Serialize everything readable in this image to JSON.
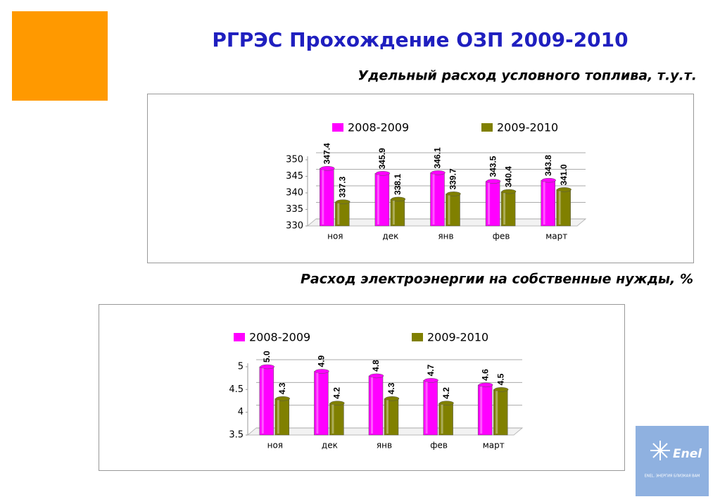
{
  "title": "РГРЭС  Прохождение ОЗП 2009-2010",
  "logo": {
    "name": "Enel",
    "tagline": "ENEL. ЭНЕРГИЯ БЛИЗКАЯ ВАМ"
  },
  "chart_data": [
    {
      "type": "bar",
      "title": "Удельный расход условного топлива, т.у.т.",
      "categories": [
        "ноя",
        "дек",
        "янв",
        "фев",
        "март"
      ],
      "series": [
        {
          "name": "2008-2009",
          "color": "#ff00ff",
          "values": [
            347.4,
            345.9,
            346.1,
            343.5,
            343.8
          ],
          "value_labels": [
            "347.4",
            "345.9",
            "346.1",
            "343.5",
            "343.8"
          ]
        },
        {
          "name": "2009-2010",
          "color": "#808000",
          "values": [
            337.3,
            338.1,
            339.7,
            340.4,
            341.0
          ],
          "value_labels": [
            "337.3",
            "338.1",
            "339.7",
            "340.4",
            "341.0"
          ]
        }
      ],
      "ylim": [
        330,
        350
      ],
      "yticks": [
        330,
        335,
        340,
        345,
        350
      ],
      "grid": true,
      "legend": "top"
    },
    {
      "type": "bar",
      "title": "Расход электроэнергии на собственные нужды, %",
      "categories": [
        "ноя",
        "дек",
        "янв",
        "фев",
        "март"
      ],
      "series": [
        {
          "name": "2008-2009",
          "color": "#ff00ff",
          "values": [
            5.0,
            4.9,
            4.8,
            4.7,
            4.6
          ],
          "value_labels": [
            "5.0",
            "4.9",
            "4.8",
            "4.7",
            "4.6"
          ]
        },
        {
          "name": "2009-2010",
          "color": "#808000",
          "values": [
            4.3,
            4.2,
            4.3,
            4.2,
            4.5
          ],
          "value_labels": [
            "4.3",
            "4.2",
            "4.3",
            "4.2",
            "4.5"
          ]
        }
      ],
      "ylim": [
        3.5,
        5
      ],
      "yticks": [
        3.5,
        4,
        4.5,
        5
      ],
      "grid": true,
      "legend": "top"
    }
  ]
}
